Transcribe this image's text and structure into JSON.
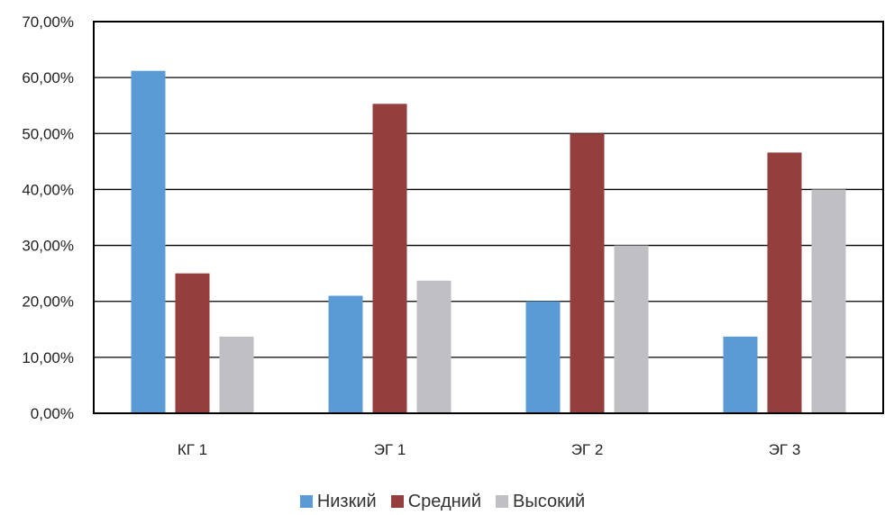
{
  "chart_data": {
    "type": "bar",
    "categories": [
      "КГ 1",
      "ЭГ 1",
      "ЭГ 2",
      "ЭГ 3"
    ],
    "series": [
      {
        "name": "Низкий",
        "color": "#5B9BD5",
        "values": [
          61.2,
          21.0,
          20.0,
          13.7
        ]
      },
      {
        "name": "Средний",
        "color": "#943E3D",
        "values": [
          25.0,
          55.3,
          50.0,
          46.6
        ]
      },
      {
        "name": "Высокий",
        "color": "#C0C0C4",
        "values": [
          13.7,
          23.7,
          30.0,
          40.0
        ]
      }
    ],
    "yticks": [
      "0,00%",
      "10,00%",
      "20,00%",
      "30,00%",
      "40,00%",
      "50,00%",
      "60,00%",
      "70,00%"
    ],
    "ylim": [
      0,
      70
    ],
    "y_unit": "percent",
    "grid": true,
    "legend_position": "bottom",
    "title": "",
    "xlabel": "",
    "ylabel": ""
  }
}
